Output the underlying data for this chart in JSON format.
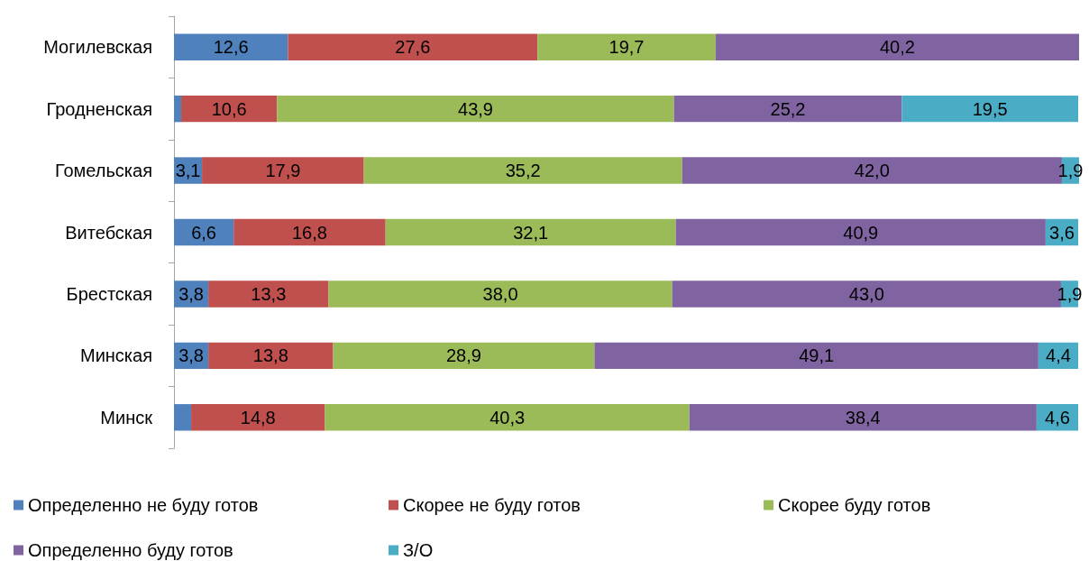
{
  "chart_data": {
    "type": "bar",
    "orientation": "horizontal",
    "stacked": true,
    "legend": "bottom",
    "grid": false,
    "categories": [
      "Могилевская",
      "Гродненская",
      "Гомельская",
      "Витебская",
      "Брестская",
      "Минская",
      "Минск"
    ],
    "series": [
      {
        "name": "Определенно не буду готов",
        "color": "#4f81bd",
        "values": [
          12.6,
          0.8,
          3.1,
          6.6,
          3.8,
          3.8,
          1.9
        ],
        "value_labels": [
          "12,6",
          null,
          "3,1",
          "6,6",
          "3,8",
          "3,8",
          null
        ]
      },
      {
        "name": "Скорее не буду готов",
        "color": "#c0504d",
        "values": [
          27.6,
          10.6,
          17.9,
          16.8,
          13.3,
          13.8,
          14.8
        ],
        "value_labels": [
          "27,6",
          "10,6",
          "17,9",
          "16,8",
          "13,3",
          "13,8",
          "14,8"
        ]
      },
      {
        "name": "Скорее буду готов",
        "color": "#9bbb59",
        "values": [
          19.7,
          43.9,
          35.2,
          32.1,
          38.0,
          28.9,
          40.3
        ],
        "value_labels": [
          "19,7",
          "43,9",
          "35,2",
          "32,1",
          "38,0",
          "28,9",
          "40,3"
        ]
      },
      {
        "name": "Определенно буду готов",
        "color": "#8064a2",
        "values": [
          40.2,
          25.2,
          42.0,
          40.9,
          43.0,
          49.1,
          38.4
        ],
        "value_labels": [
          "40,2",
          "25,2",
          "42,0",
          "40,9",
          "43,0",
          "49,1",
          "38,4"
        ]
      },
      {
        "name": "З/О",
        "color": "#4bacc6",
        "values": [
          null,
          19.5,
          1.9,
          3.6,
          1.9,
          4.4,
          4.6
        ],
        "value_labels": [
          null,
          "19,5",
          "1,9",
          "3,6",
          "1,9",
          "4,4",
          "4,6"
        ]
      }
    ]
  }
}
